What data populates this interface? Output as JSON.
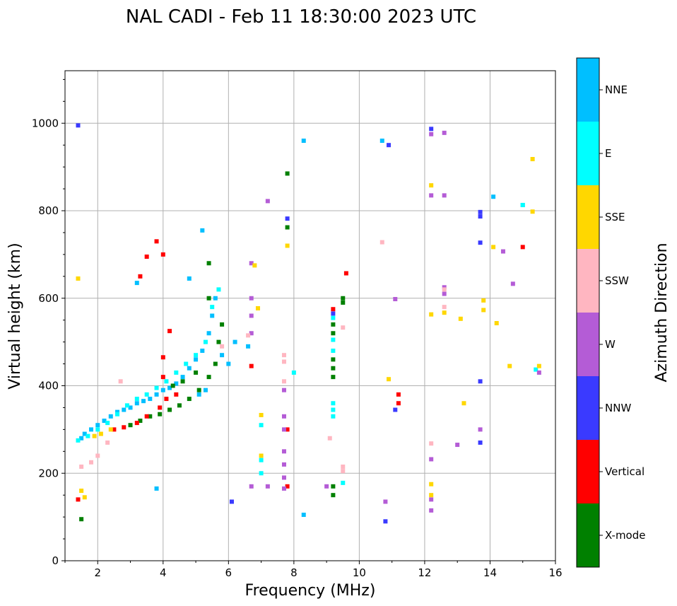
{
  "chart_data": {
    "type": "scatter",
    "title": "NAL CADI - Feb 11 18:30:00 2023 UTC",
    "xlabel": "Frequency (MHz)",
    "ylabel": "Virtual height (km)",
    "xlim": [
      1,
      16
    ],
    "ylim": [
      0,
      1120
    ],
    "xticks": [
      2,
      4,
      6,
      8,
      10,
      12,
      14,
      16
    ],
    "yticks": [
      0,
      200,
      400,
      600,
      800,
      1000
    ],
    "grid": true,
    "colorbar": {
      "title": "Azimuth Direction",
      "categories": [
        {
          "label": "X-mode",
          "color": "#008000"
        },
        {
          "label": "Vertical",
          "color": "#ff0000"
        },
        {
          "label": "NNW",
          "color": "#3a3aff"
        },
        {
          "label": "W",
          "color": "#b45cd6"
        },
        {
          "label": "SSW",
          "color": "#ffb6c1"
        },
        {
          "label": "SSE",
          "color": "#ffd700"
        },
        {
          "label": "E",
          "color": "#00ffff"
        },
        {
          "label": "NNE",
          "color": "#00bfff"
        }
      ]
    },
    "series": [
      {
        "name": "NNE",
        "points": [
          [
            1.5,
            280
          ],
          [
            1.6,
            290
          ],
          [
            1.8,
            300
          ],
          [
            2.0,
            310
          ],
          [
            2.2,
            320
          ],
          [
            2.4,
            330
          ],
          [
            2.6,
            340
          ],
          [
            2.8,
            345
          ],
          [
            3.0,
            350
          ],
          [
            3.2,
            360
          ],
          [
            3.4,
            365
          ],
          [
            3.6,
            370
          ],
          [
            3.8,
            380
          ],
          [
            4.0,
            390
          ],
          [
            4.2,
            395
          ],
          [
            4.4,
            405
          ],
          [
            4.6,
            420
          ],
          [
            4.8,
            440
          ],
          [
            5.0,
            460
          ],
          [
            5.2,
            480
          ],
          [
            5.4,
            520
          ],
          [
            5.5,
            560
          ],
          [
            5.6,
            600
          ],
          [
            5.3,
            390
          ],
          [
            5.1,
            380
          ],
          [
            5.8,
            470
          ],
          [
            6.0,
            450
          ],
          [
            6.2,
            500
          ],
          [
            6.6,
            490
          ],
          [
            3.2,
            635
          ],
          [
            3.8,
            165
          ],
          [
            4.8,
            645
          ],
          [
            5.2,
            755
          ],
          [
            8.3,
            960
          ],
          [
            8.3,
            105
          ],
          [
            10.7,
            960
          ],
          [
            14.1,
            832
          ],
          [
            15.0,
            813
          ]
        ]
      },
      {
        "name": "E",
        "points": [
          [
            1.4,
            275
          ],
          [
            1.7,
            285
          ],
          [
            2.0,
            300
          ],
          [
            2.3,
            315
          ],
          [
            2.6,
            335
          ],
          [
            2.9,
            355
          ],
          [
            3.2,
            370
          ],
          [
            3.5,
            380
          ],
          [
            3.8,
            395
          ],
          [
            4.1,
            410
          ],
          [
            4.4,
            430
          ],
          [
            4.7,
            450
          ],
          [
            5.0,
            470
          ],
          [
            5.3,
            500
          ],
          [
            5.5,
            580
          ],
          [
            5.7,
            620
          ],
          [
            7.0,
            310
          ],
          [
            7.0,
            230
          ],
          [
            7.0,
            200
          ],
          [
            9.2,
            360
          ],
          [
            9.2,
            345
          ],
          [
            9.2,
            330
          ],
          [
            9.2,
            480
          ],
          [
            9.2,
            505
          ],
          [
            9.2,
            555
          ],
          [
            9.5,
            178
          ],
          [
            8.0,
            430
          ],
          [
            15.4,
            437
          ],
          [
            15.0,
            813
          ]
        ]
      },
      {
        "name": "X-mode",
        "points": [
          [
            3.0,
            310
          ],
          [
            3.3,
            320
          ],
          [
            3.6,
            330
          ],
          [
            3.9,
            335
          ],
          [
            4.2,
            345
          ],
          [
            4.5,
            355
          ],
          [
            4.8,
            370
          ],
          [
            5.1,
            390
          ],
          [
            5.4,
            420
          ],
          [
            5.6,
            450
          ],
          [
            5.7,
            500
          ],
          [
            5.8,
            540
          ],
          [
            4.3,
            400
          ],
          [
            4.6,
            410
          ],
          [
            5.0,
            430
          ],
          [
            5.4,
            600
          ],
          [
            5.4,
            680
          ],
          [
            7.8,
            885
          ],
          [
            7.8,
            762
          ],
          [
            9.2,
            170
          ],
          [
            9.2,
            150
          ],
          [
            9.2,
            420
          ],
          [
            9.2,
            440
          ],
          [
            9.2,
            460
          ],
          [
            9.2,
            520
          ],
          [
            9.2,
            540
          ],
          [
            9.5,
            590
          ],
          [
            9.5,
            600
          ],
          [
            1.5,
            95
          ]
        ]
      },
      {
        "name": "Vertical",
        "points": [
          [
            2.5,
            300
          ],
          [
            2.8,
            305
          ],
          [
            3.2,
            315
          ],
          [
            3.5,
            330
          ],
          [
            3.9,
            350
          ],
          [
            4.1,
            370
          ],
          [
            4.4,
            380
          ],
          [
            4.0,
            420
          ],
          [
            4.0,
            465
          ],
          [
            4.2,
            525
          ],
          [
            3.3,
            650
          ],
          [
            3.5,
            695
          ],
          [
            3.8,
            730
          ],
          [
            4.0,
            700
          ],
          [
            1.4,
            140
          ],
          [
            6.7,
            445
          ],
          [
            7.8,
            300
          ],
          [
            7.8,
            170
          ],
          [
            9.2,
            575
          ],
          [
            9.6,
            657
          ],
          [
            11.2,
            360
          ],
          [
            11.2,
            380
          ],
          [
            15.0,
            717
          ]
        ]
      },
      {
        "name": "NNW",
        "points": [
          [
            1.4,
            995
          ],
          [
            7.8,
            782
          ],
          [
            9.2,
            565
          ],
          [
            10.8,
            90
          ],
          [
            10.9,
            950
          ],
          [
            12.2,
            987
          ],
          [
            13.7,
            797
          ],
          [
            13.7,
            787
          ],
          [
            13.7,
            727
          ],
          [
            13.7,
            410
          ],
          [
            13.7,
            270
          ],
          [
            6.1,
            135
          ],
          [
            11.1,
            345
          ]
        ]
      },
      {
        "name": "W",
        "points": [
          [
            6.7,
            680
          ],
          [
            6.7,
            600
          ],
          [
            6.7,
            560
          ],
          [
            6.7,
            520
          ],
          [
            7.7,
            330
          ],
          [
            7.7,
            300
          ],
          [
            7.7,
            250
          ],
          [
            7.7,
            220
          ],
          [
            7.7,
            190
          ],
          [
            7.7,
            165
          ],
          [
            6.7,
            170
          ],
          [
            7.2,
            170
          ],
          [
            7.2,
            822
          ],
          [
            9.0,
            170
          ],
          [
            10.8,
            135
          ],
          [
            11.1,
            598
          ],
          [
            12.2,
            975
          ],
          [
            12.2,
            835
          ],
          [
            12.2,
            232
          ],
          [
            12.2,
            140
          ],
          [
            12.2,
            115
          ],
          [
            12.6,
            978
          ],
          [
            12.6,
            835
          ],
          [
            12.6,
            625
          ],
          [
            12.6,
            610
          ],
          [
            13.0,
            265
          ],
          [
            13.7,
            300
          ],
          [
            14.4,
            707
          ],
          [
            14.7,
            633
          ],
          [
            15.5,
            430
          ],
          [
            7.7,
            390
          ]
        ]
      },
      {
        "name": "SSW",
        "points": [
          [
            1.5,
            215
          ],
          [
            1.8,
            225
          ],
          [
            2.0,
            240
          ],
          [
            2.3,
            270
          ],
          [
            2.7,
            410
          ],
          [
            6.6,
            515
          ],
          [
            7.7,
            470
          ],
          [
            7.7,
            455
          ],
          [
            7.7,
            410
          ],
          [
            9.1,
            280
          ],
          [
            9.5,
            215
          ],
          [
            9.5,
            205
          ],
          [
            9.5,
            533
          ],
          [
            10.7,
            728
          ],
          [
            12.6,
            580
          ],
          [
            12.6,
            620
          ],
          [
            12.2,
            268
          ],
          [
            5.8,
            490
          ]
        ]
      },
      {
        "name": "SSE",
        "points": [
          [
            1.4,
            645
          ],
          [
            1.6,
            145
          ],
          [
            1.5,
            160
          ],
          [
            1.9,
            285
          ],
          [
            2.1,
            290
          ],
          [
            2.4,
            300
          ],
          [
            6.8,
            675
          ],
          [
            6.9,
            577
          ],
          [
            7.0,
            333
          ],
          [
            7.0,
            240
          ],
          [
            7.8,
            720
          ],
          [
            10.9,
            415
          ],
          [
            12.2,
            858
          ],
          [
            12.2,
            563
          ],
          [
            12.2,
            175
          ],
          [
            12.2,
            150
          ],
          [
            12.6,
            567
          ],
          [
            13.1,
            553
          ],
          [
            13.2,
            360
          ],
          [
            13.8,
            595
          ],
          [
            13.8,
            573
          ],
          [
            14.1,
            717
          ],
          [
            14.2,
            543
          ],
          [
            14.6,
            445
          ],
          [
            15.3,
            918
          ],
          [
            15.3,
            798
          ],
          [
            15.5,
            445
          ]
        ]
      }
    ]
  }
}
